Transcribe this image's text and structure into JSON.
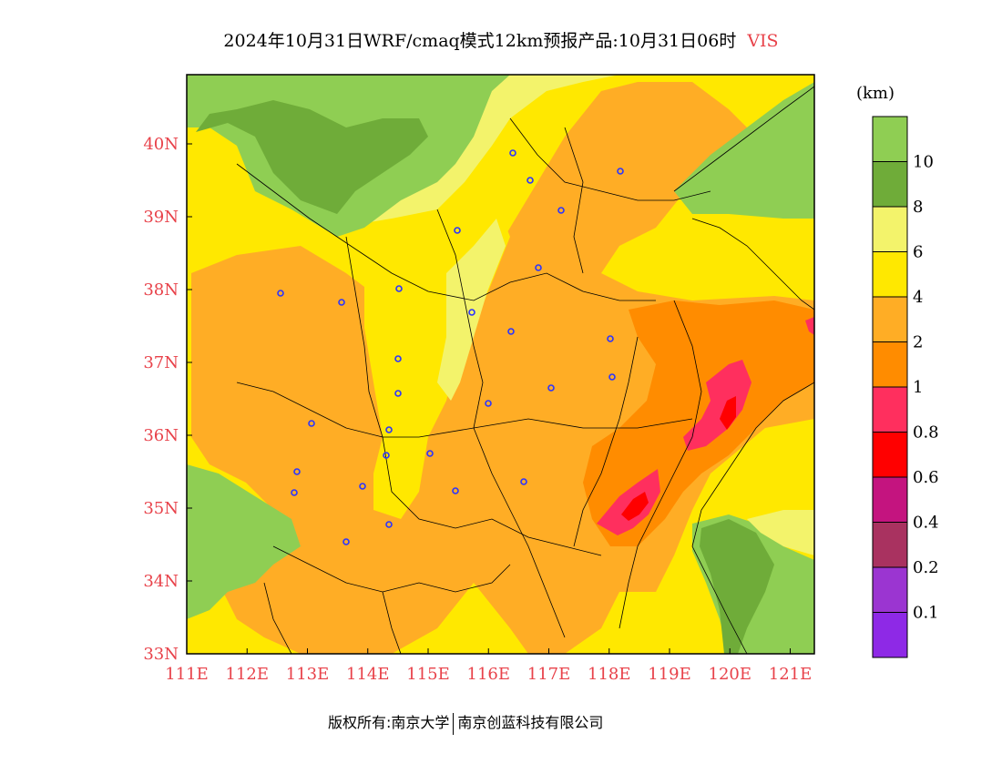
{
  "title": {
    "text": "2024年10月31日WRF/cmaq模式12km预报产品:10月31日06时",
    "variable": "VIS"
  },
  "credit": {
    "left": "版权所有:南京大学",
    "right": "南京创蓝科技有限公司"
  },
  "map": {
    "lon_labels": [
      "111E",
      "112E",
      "113E",
      "114E",
      "115E",
      "116E",
      "117E",
      "118E",
      "119E",
      "120E",
      "121E"
    ],
    "lat_labels": [
      "33N",
      "34N",
      "35N",
      "36N",
      "37N",
      "38N",
      "39N",
      "40N"
    ],
    "lon_range": [
      111,
      121.4
    ],
    "lat_range": [
      33,
      40.95
    ],
    "fill_levels_km": {
      "very_high_green": "#8fce53",
      "dark_green_8_10": "#6fac39",
      "light_yellow_6_8": "#f3f36b",
      "yellow_4_6": "#ffe800",
      "orange_2_4": "#ffad25",
      "dark_orange_1_2": "#ff8c00",
      "pink_0.8_1": "#ff2f5e",
      "red_0.6_0.8": "#ff0000"
    },
    "city_marker_color": "#2b34ff"
  },
  "colorbar": {
    "unit": "(km)",
    "colors": [
      "#8e29e6",
      "#9b35d1",
      "#a93260",
      "#c4147f",
      "#ff0000",
      "#ff2f5e",
      "#ff8c00",
      "#ffad25",
      "#ffe800",
      "#f3f36b",
      "#6fac39",
      "#8fce53"
    ],
    "labels": [
      "0.1",
      "0.2",
      "0.4",
      "0.6",
      "0.8",
      "1",
      "2",
      "4",
      "6",
      "8",
      "10"
    ]
  }
}
